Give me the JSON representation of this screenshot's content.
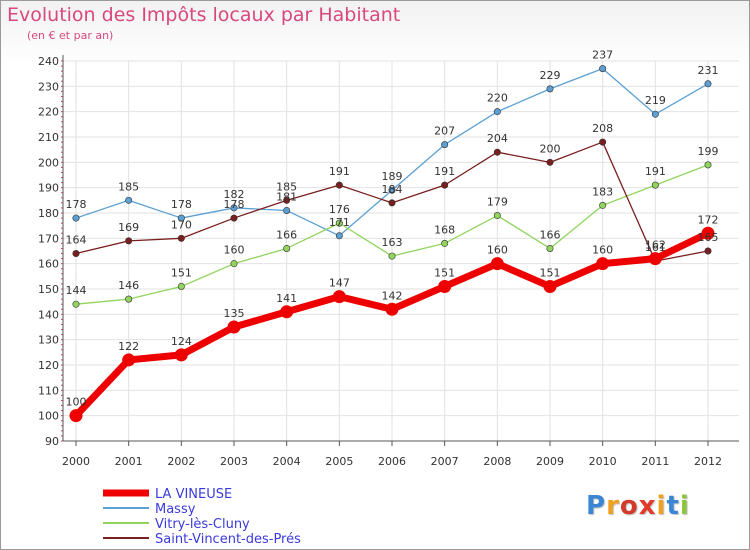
{
  "chart_data": {
    "type": "line",
    "title": "Evolution des Impôts locaux par Habitant",
    "subtitle": "(en € et par an)",
    "x": [
      "2000",
      "2001",
      "2002",
      "2003",
      "2004",
      "2005",
      "2006",
      "2007",
      "2008",
      "2009",
      "2010",
      "2011",
      "2012"
    ],
    "ylim": [
      90,
      240
    ],
    "yticks": [
      90,
      100,
      110,
      120,
      130,
      140,
      150,
      160,
      170,
      180,
      190,
      200,
      210,
      220,
      230,
      240
    ],
    "grid": true,
    "series": [
      {
        "name": "LA VINEUSE",
        "color": "#ee0000",
        "highlight": true,
        "values": [
          100,
          122,
          124,
          135,
          141,
          147,
          142,
          151,
          160,
          151,
          160,
          162,
          172
        ]
      },
      {
        "name": "Massy",
        "color": "#5b9fd3",
        "values": [
          178,
          185,
          178,
          182,
          181,
          171,
          189,
          207,
          220,
          229,
          237,
          219,
          231
        ]
      },
      {
        "name": "Vitry-lès-Cluny",
        "color": "#92d45e",
        "values": [
          144,
          146,
          151,
          160,
          166,
          176,
          163,
          168,
          179,
          166,
          183,
          191,
          199
        ]
      },
      {
        "name": "Saint-Vincent-des-Prés",
        "color": "#7a1f1f",
        "values": [
          164,
          169,
          170,
          178,
          185,
          191,
          184,
          191,
          204,
          200,
          208,
          161,
          165
        ]
      }
    ]
  },
  "logo": {
    "text": "Proxiti",
    "letter_colors": [
      "#3a86d4",
      "#f0a020",
      "#d23a2a",
      "#e23a2a",
      "#f0a020",
      "#3a86d4",
      "#8cc63f"
    ]
  }
}
